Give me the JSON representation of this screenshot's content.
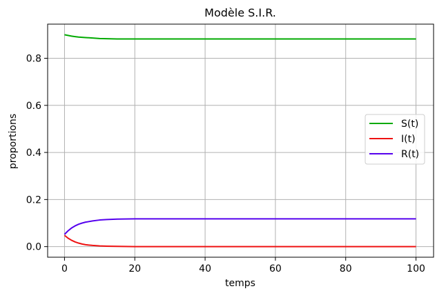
{
  "chart_data": {
    "type": "line",
    "title": "Modèle S.I.R.",
    "xlabel": "temps",
    "ylabel": "proportions",
    "xlim": [
      -4.8,
      105
    ],
    "ylim": [
      -0.045,
      0.945
    ],
    "xticks": [
      0,
      20,
      40,
      60,
      80,
      100
    ],
    "xtick_labels": [
      "0",
      "20",
      "40",
      "60",
      "80",
      "100"
    ],
    "yticks": [
      0.0,
      0.2,
      0.4,
      0.6,
      0.8
    ],
    "ytick_labels": [
      "0.0",
      "0.2",
      "0.4",
      "0.6",
      "0.8"
    ],
    "grid": true,
    "legend_position": "center-right",
    "x": [
      0,
      1,
      2,
      3,
      4,
      5,
      6,
      8,
      10,
      12,
      15,
      20,
      25,
      30,
      40,
      50,
      60,
      70,
      80,
      90,
      100
    ],
    "series": [
      {
        "name": "S(t)",
        "color": "#00aa00",
        "values": [
          0.9,
          0.897,
          0.894,
          0.892,
          0.89,
          0.889,
          0.888,
          0.886,
          0.884,
          0.883,
          0.882,
          0.882,
          0.882,
          0.882,
          0.882,
          0.882,
          0.882,
          0.882,
          0.882,
          0.882,
          0.882
        ]
      },
      {
        "name": "I(t)",
        "color": "#ee1111",
        "values": [
          0.048,
          0.036,
          0.027,
          0.02,
          0.015,
          0.011,
          0.008,
          0.005,
          0.003,
          0.002,
          0.001,
          0.0,
          0.0,
          0.0,
          0.0,
          0.0,
          0.0,
          0.0,
          0.0,
          0.0,
          0.0
        ]
      },
      {
        "name": "R(t)",
        "color": "#5500ee",
        "values": [
          0.052,
          0.067,
          0.079,
          0.088,
          0.095,
          0.1,
          0.104,
          0.109,
          0.113,
          0.115,
          0.117,
          0.118,
          0.118,
          0.118,
          0.118,
          0.118,
          0.118,
          0.118,
          0.118,
          0.118,
          0.118
        ]
      }
    ]
  }
}
